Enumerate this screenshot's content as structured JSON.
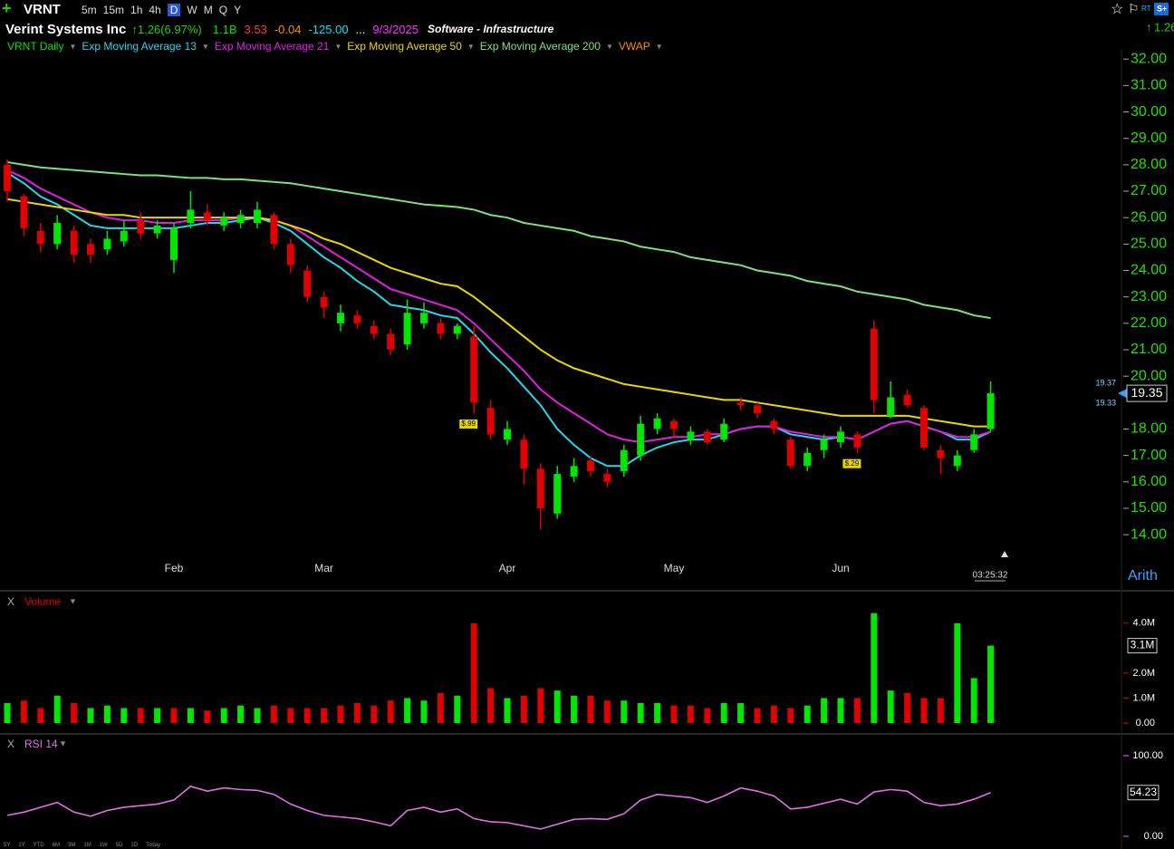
{
  "toolbar": {
    "symbol": "VRNT",
    "timeframes": [
      "5m",
      "15m",
      "1h",
      "4h",
      "D",
      "W",
      "M",
      "Q",
      "Y"
    ],
    "active": "D"
  },
  "quote": {
    "name": "Verint Systems Inc",
    "change": "1.26",
    "change_pct": "(6.97%)",
    "fields": [
      {
        "text": "1.1B",
        "color": "#00e000"
      },
      {
        "text": "3.53",
        "color": "#ff3a3a"
      },
      {
        "text": "-0.04",
        "color": "#ff8c00"
      },
      {
        "text": "-125.00",
        "color": "#00e0ff"
      },
      {
        "text": "...",
        "color": "#ffffff"
      },
      {
        "text": "9/3/2025",
        "color": "#ff30ff"
      }
    ],
    "industry": "Software - Infrastructure",
    "vwap_label": "VWAP"
  },
  "footer": {
    "clock": "03:25:32",
    "scale_mode": "Arith",
    "ranges": [
      "5Y",
      "1Y",
      "YTD",
      "6M",
      "3M",
      "1M",
      "1W",
      "5D",
      "1D",
      "Today"
    ]
  },
  "chart_data": [
    {
      "type": "candlestick",
      "name": "VRNT Daily",
      "up_color": "#00e600",
      "down_color": "#e00000",
      "categories": [
        null,
        null,
        null,
        null,
        null,
        null,
        null,
        null,
        null,
        null,
        "Feb",
        null,
        null,
        null,
        null,
        null,
        null,
        null,
        null,
        "Mar",
        null,
        null,
        null,
        null,
        null,
        null,
        null,
        null,
        null,
        null,
        "Apr",
        null,
        null,
        null,
        null,
        null,
        null,
        null,
        null,
        null,
        "May",
        null,
        null,
        null,
        null,
        null,
        null,
        null,
        null,
        null,
        "Jun",
        null,
        null,
        null,
        null,
        null,
        null,
        null,
        null,
        null
      ],
      "open": [
        28.0,
        26.8,
        25.5,
        25.0,
        25.5,
        25.0,
        24.8,
        25.1,
        25.9,
        25.4,
        24.4,
        25.8,
        26.2,
        25.7,
        25.8,
        25.8,
        26.1,
        25.0,
        24.0,
        23.0,
        22.0,
        22.3,
        21.9,
        21.6,
        21.2,
        22.0,
        22.0,
        21.6,
        21.5,
        18.8,
        17.6,
        17.6,
        16.5,
        14.8,
        16.2,
        16.8,
        16.3,
        16.4,
        17.0,
        18.0,
        18.3,
        17.6,
        17.9,
        17.6,
        19.0,
        18.9,
        18.3,
        17.6,
        16.6,
        17.2,
        17.5,
        17.8,
        21.8,
        18.5,
        19.3,
        18.8,
        17.2,
        16.6,
        17.2,
        18.0
      ],
      "high": [
        28.2,
        26.9,
        25.8,
        26.1,
        25.7,
        25.2,
        25.5,
        25.9,
        26.2,
        25.9,
        25.8,
        27.0,
        26.5,
        26.2,
        26.3,
        26.6,
        26.2,
        25.2,
        24.2,
        23.2,
        22.7,
        22.5,
        22.1,
        21.8,
        22.9,
        22.8,
        22.2,
        22.0,
        21.9,
        19.1,
        18.3,
        17.8,
        16.7,
        16.6,
        16.9,
        17.0,
        16.5,
        17.4,
        18.5,
        18.6,
        18.4,
        18.1,
        18.0,
        18.4,
        19.2,
        19.0,
        18.4,
        17.7,
        17.3,
        17.8,
        18.1,
        17.9,
        22.1,
        19.8,
        19.5,
        18.9,
        17.4,
        17.2,
        18.0,
        19.8
      ],
      "low": [
        26.6,
        25.3,
        24.7,
        24.8,
        24.3,
        24.3,
        24.6,
        24.9,
        25.2,
        25.2,
        23.9,
        25.6,
        25.7,
        25.5,
        25.6,
        25.6,
        24.8,
        23.9,
        22.8,
        22.2,
        21.7,
        21.8,
        21.4,
        20.8,
        21.0,
        21.8,
        21.4,
        21.4,
        18.6,
        17.6,
        17.4,
        15.9,
        14.2,
        14.6,
        16.0,
        16.2,
        15.8,
        16.2,
        16.8,
        17.8,
        17.7,
        17.4,
        17.4,
        17.5,
        18.7,
        18.4,
        17.8,
        16.5,
        16.4,
        16.9,
        17.3,
        17.1,
        18.6,
        18.4,
        18.8,
        17.2,
        16.3,
        16.4,
        17.1,
        17.9
      ],
      "close": [
        27.0,
        25.6,
        25.0,
        25.8,
        24.6,
        24.6,
        25.2,
        25.5,
        25.4,
        25.7,
        25.6,
        26.3,
        25.9,
        26.0,
        26.1,
        26.3,
        25.0,
        24.2,
        23.0,
        22.6,
        22.4,
        22.0,
        21.6,
        21.0,
        22.4,
        22.4,
        21.6,
        21.9,
        19.0,
        17.8,
        18.0,
        16.5,
        15.0,
        16.3,
        16.6,
        16.4,
        16.0,
        17.2,
        18.2,
        18.4,
        18.0,
        17.9,
        17.5,
        18.2,
        18.9,
        18.6,
        18.0,
        16.6,
        17.1,
        17.6,
        17.9,
        17.3,
        19.1,
        19.2,
        18.9,
        17.3,
        16.9,
        17.0,
        17.8,
        19.35
      ],
      "ask": 19.37,
      "bid": 19.33,
      "series": [
        {
          "name": "Exp Moving Average 13",
          "color": "#22d8ea",
          "values": [
            27.7,
            27.3,
            26.8,
            26.5,
            26.1,
            25.7,
            25.6,
            25.6,
            25.6,
            25.6,
            25.6,
            25.7,
            25.8,
            25.8,
            25.9,
            26.0,
            25.8,
            25.5,
            25.0,
            24.5,
            24.1,
            23.6,
            23.2,
            22.7,
            22.6,
            22.5,
            22.3,
            22.2,
            21.6,
            20.9,
            20.3,
            19.6,
            18.9,
            18.0,
            17.4,
            16.9,
            16.6,
            16.6,
            17.0,
            17.3,
            17.5,
            17.6,
            17.6,
            17.8,
            18.0,
            18.1,
            18.1,
            17.8,
            17.7,
            17.6,
            17.7,
            17.6,
            17.9,
            18.2,
            18.3,
            18.1,
            17.9,
            17.6,
            17.6,
            17.9
          ]
        },
        {
          "name": "Exp Moving Average 21",
          "color": "#e020e0",
          "values": [
            27.8,
            27.5,
            27.1,
            26.8,
            26.5,
            26.2,
            26.0,
            25.9,
            25.9,
            25.8,
            25.8,
            25.9,
            25.9,
            25.9,
            26.0,
            26.0,
            25.9,
            25.7,
            25.3,
            24.9,
            24.5,
            24.1,
            23.7,
            23.3,
            23.1,
            22.9,
            22.7,
            22.5,
            22.0,
            21.4,
            20.8,
            20.2,
            19.5,
            19.0,
            18.6,
            18.2,
            17.8,
            17.6,
            17.5,
            17.6,
            17.7,
            17.7,
            17.8,
            17.8,
            18.0,
            18.1,
            18.1,
            17.9,
            17.8,
            17.7,
            17.7,
            17.6,
            17.9,
            18.2,
            18.3,
            18.1,
            17.9,
            17.7,
            17.7,
            17.9
          ]
        },
        {
          "name": "Exp Moving Average 50",
          "color": "#e8d800",
          "values": [
            26.7,
            26.6,
            26.5,
            26.4,
            26.3,
            26.2,
            26.1,
            26.1,
            26.0,
            26.0,
            26.0,
            26.0,
            26.0,
            26.0,
            26.0,
            26.0,
            25.9,
            25.7,
            25.5,
            25.2,
            25.0,
            24.7,
            24.4,
            24.1,
            23.9,
            23.7,
            23.5,
            23.4,
            23.0,
            22.5,
            22.0,
            21.5,
            21.0,
            20.6,
            20.3,
            20.1,
            19.9,
            19.7,
            19.6,
            19.5,
            19.4,
            19.3,
            19.2,
            19.1,
            19.1,
            19.0,
            18.9,
            18.8,
            18.7,
            18.6,
            18.5,
            18.5,
            18.5,
            18.5,
            18.5,
            18.4,
            18.3,
            18.2,
            18.1,
            18.1
          ]
        },
        {
          "name": "Exp Moving Average 200",
          "color": "#7ee07e",
          "values": [
            28.1,
            28.0,
            27.9,
            27.85,
            27.8,
            27.75,
            27.7,
            27.65,
            27.6,
            27.6,
            27.55,
            27.5,
            27.5,
            27.45,
            27.45,
            27.4,
            27.35,
            27.3,
            27.2,
            27.1,
            27.0,
            26.9,
            26.8,
            26.7,
            26.6,
            26.5,
            26.45,
            26.4,
            26.3,
            26.1,
            26.0,
            25.8,
            25.7,
            25.6,
            25.5,
            25.3,
            25.2,
            25.1,
            24.9,
            24.8,
            24.7,
            24.5,
            24.4,
            24.3,
            24.2,
            24.0,
            23.9,
            23.8,
            23.6,
            23.5,
            23.4,
            23.2,
            23.1,
            23.0,
            22.9,
            22.7,
            22.6,
            22.5,
            22.3,
            22.2
          ]
        }
      ],
      "annotations": [
        "$.99",
        "$.29"
      ],
      "ylim": [
        13.25,
        32.35
      ],
      "yticks": [
        {
          "value": 14,
          "label": "14.00"
        },
        {
          "value": 15,
          "label": "15.00"
        },
        {
          "value": 16,
          "label": "16.00"
        },
        {
          "value": 17,
          "label": "17.00"
        },
        {
          "value": 18,
          "label": "18.00"
        },
        {
          "value": 20,
          "label": "20.00"
        },
        {
          "value": 21,
          "label": "21.00"
        },
        {
          "value": 22,
          "label": "22.00"
        },
        {
          "value": 23,
          "label": "23.00"
        },
        {
          "value": 24,
          "label": "24.00"
        },
        {
          "value": 25,
          "label": "25.00"
        },
        {
          "value": 26,
          "label": "26.00"
        },
        {
          "value": 27,
          "label": "27.00"
        },
        {
          "value": 28,
          "label": "28.00"
        },
        {
          "value": 29,
          "label": "29.00"
        },
        {
          "value": 30,
          "label": "30.00"
        },
        {
          "value": 31,
          "label": "31.00"
        },
        {
          "value": 32,
          "label": "32.00"
        }
      ]
    },
    {
      "type": "bar",
      "title": "Volume",
      "close_label": "X",
      "up_color": "#00e600",
      "down_color": "#e00000",
      "values": [
        0.8,
        0.9,
        0.6,
        1.1,
        0.8,
        0.6,
        0.7,
        0.6,
        0.6,
        0.6,
        0.6,
        0.6,
        0.5,
        0.6,
        0.7,
        0.6,
        0.7,
        0.6,
        0.6,
        0.6,
        0.7,
        0.8,
        0.7,
        0.9,
        1.0,
        0.9,
        1.2,
        1.1,
        4.0,
        1.4,
        1.0,
        1.1,
        1.4,
        1.3,
        1.1,
        1.1,
        0.9,
        0.9,
        0.8,
        0.8,
        0.7,
        0.7,
        0.6,
        0.8,
        0.8,
        0.6,
        0.7,
        0.6,
        0.7,
        1.0,
        1.0,
        1.0,
        4.4,
        1.3,
        1.2,
        1.0,
        1.0,
        4.0,
        1.8,
        3.1
      ],
      "last_value_label": "3.1M",
      "ylim": [
        0,
        4.5
      ],
      "yticks": [
        {
          "value": 0,
          "label": "0.00"
        },
        {
          "value": 1,
          "label": "1.0M"
        },
        {
          "value": 2,
          "label": "2.0M"
        },
        {
          "value": 4,
          "label": "4.0M"
        }
      ]
    },
    {
      "type": "line",
      "title": "RSI 14",
      "close_label": "X",
      "color": "#e070e8",
      "values": [
        26,
        30,
        36,
        42,
        30,
        25,
        32,
        36,
        38,
        40,
        45,
        62,
        56,
        60,
        58,
        57,
        52,
        40,
        32,
        26,
        24,
        22,
        18,
        13,
        32,
        36,
        30,
        34,
        22,
        18,
        17,
        13,
        9,
        15,
        21,
        22,
        21,
        28,
        45,
        52,
        50,
        48,
        42,
        50,
        60,
        56,
        50,
        34,
        36,
        41,
        46,
        40,
        55,
        58,
        56,
        42,
        38,
        40,
        46,
        54.23
      ],
      "ylim": [
        0,
        100
      ],
      "yticks": [
        {
          "value": 0,
          "label": "0.00"
        },
        {
          "value": 100,
          "label": "100.00"
        }
      ]
    }
  ]
}
